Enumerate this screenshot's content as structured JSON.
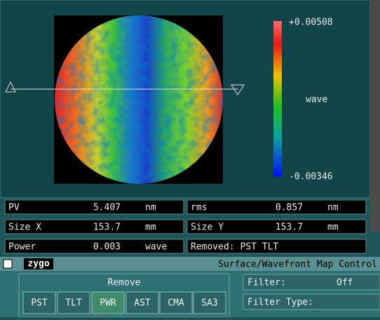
{
  "map": {
    "scale_max": "+0.00508",
    "scale_unit": "wave",
    "scale_min": "-0.00346"
  },
  "stats": [
    [
      {
        "label": "PV",
        "value": "5.407",
        "unit": "nm"
      },
      {
        "label": "rms",
        "value": "0.857",
        "unit": "nm"
      }
    ],
    [
      {
        "label": "Size X",
        "value": "153.7",
        "unit": "mm"
      },
      {
        "label": "Size Y",
        "value": "153.7",
        "unit": "mm"
      }
    ],
    [
      {
        "label": "Power",
        "value": "0.003",
        "unit": "wave"
      }
    ]
  ],
  "removed": "Removed: PST TLT",
  "control": {
    "logo": "zygo",
    "title": "Surface/Wavefront Map Control",
    "remove_title": "Remove",
    "remove_buttons": [
      "PST",
      "TLT",
      "PWR",
      "AST",
      "CMA",
      "SA3"
    ],
    "filter_label": "Filter:",
    "filter_value": "Off",
    "filter_type_label": "Filter Type:"
  }
}
